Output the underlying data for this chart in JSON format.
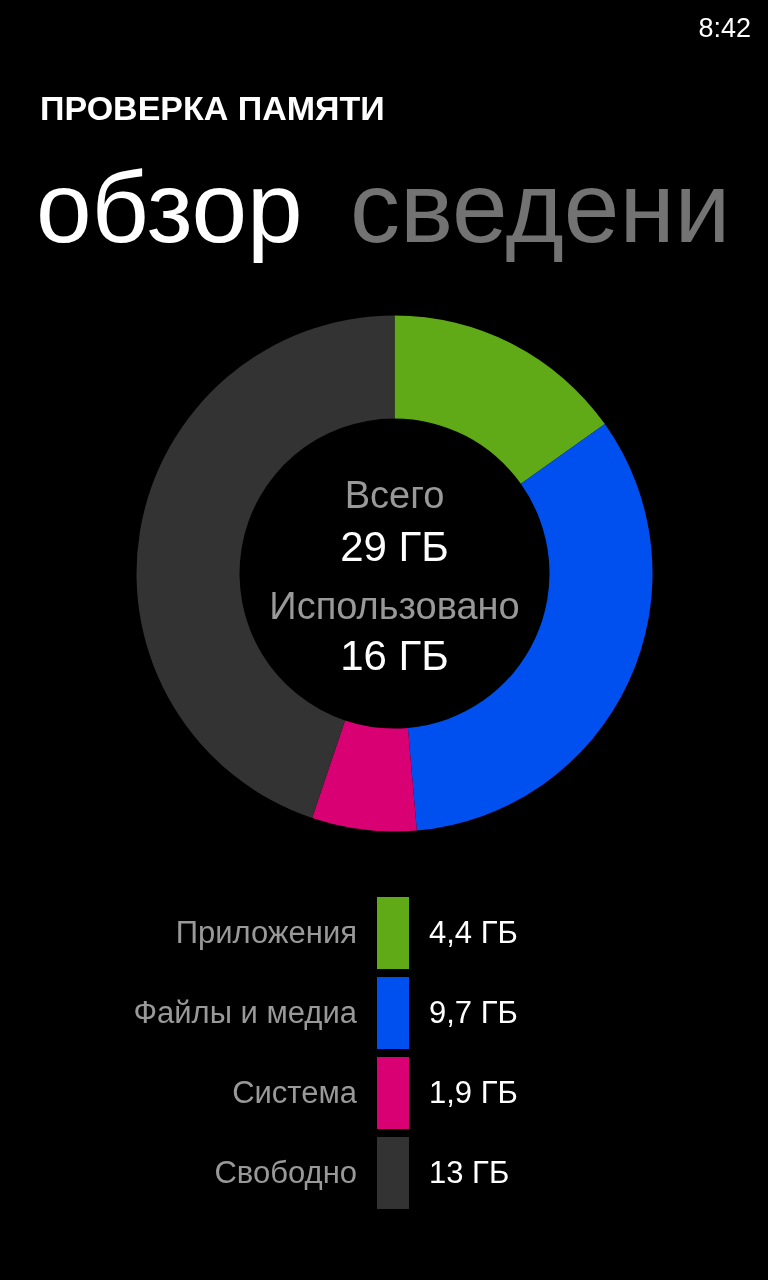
{
  "chart_data": {
    "type": "donut",
    "title": "ПРОВЕРКА ПАМЯТИ",
    "annotations": [
      "8:42",
      "обзор",
      "сведени",
      "Всего",
      "29 ГБ",
      "Использовано",
      "16 ГБ"
    ],
    "categories": [
      "Приложения",
      "Файлы и медиа",
      "Система",
      "Свободно"
    ],
    "values": [
      4.4,
      9.7,
      1.9,
      13
    ],
    "colors": [
      "#60a917",
      "#0050ef",
      "#d80073",
      "#333333"
    ],
    "value_labels": [
      "4,4 ГБ",
      "9,7 ГБ",
      "1,9 ГБ",
      "13 ГБ"
    ],
    "legend": "bottom"
  }
}
